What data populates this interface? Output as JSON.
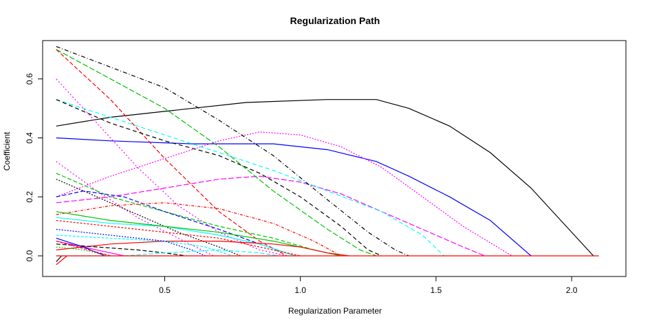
{
  "chart_data": {
    "type": "line",
    "title": "Regularization Path",
    "xlabel": "Regularization Parameter",
    "ylabel": "Coefficient",
    "xlim": [
      0.05,
      2.2
    ],
    "ylim": [
      -0.07,
      0.73
    ],
    "xticks": [
      "0.5",
      "1.0",
      "1.5",
      "2.0"
    ],
    "yticks": [
      "0.0",
      "0.2",
      "0.4",
      "0.6"
    ],
    "grid": false,
    "legend": "none",
    "series": [
      {
        "color": "#000000",
        "dash": "",
        "points": [
          [
            0.1,
            0.44
          ],
          [
            0.3,
            0.47
          ],
          [
            0.5,
            0.49
          ],
          [
            0.8,
            0.52
          ],
          [
            1.1,
            0.53
          ],
          [
            1.28,
            0.53
          ],
          [
            1.4,
            0.5
          ],
          [
            1.55,
            0.44
          ],
          [
            1.7,
            0.35
          ],
          [
            1.85,
            0.23
          ],
          [
            2.08,
            0.0
          ]
        ]
      },
      {
        "color": "#0000ff",
        "dash": "",
        "points": [
          [
            0.1,
            0.4
          ],
          [
            0.3,
            0.39
          ],
          [
            0.6,
            0.38
          ],
          [
            0.9,
            0.38
          ],
          [
            1.1,
            0.36
          ],
          [
            1.28,
            0.32
          ],
          [
            1.4,
            0.27
          ],
          [
            1.55,
            0.2
          ],
          [
            1.7,
            0.12
          ],
          [
            1.85,
            0.0
          ]
        ]
      },
      {
        "color": "#ff00ff",
        "dash": "2,2",
        "points": [
          [
            0.1,
            0.2
          ],
          [
            0.3,
            0.27
          ],
          [
            0.5,
            0.33
          ],
          [
            0.7,
            0.39
          ],
          [
            0.85,
            0.42
          ],
          [
            1.0,
            0.41
          ],
          [
            1.15,
            0.37
          ],
          [
            1.3,
            0.3
          ],
          [
            1.45,
            0.2
          ],
          [
            1.6,
            0.1
          ],
          [
            1.78,
            0.0
          ]
        ]
      },
      {
        "color": "#ff00ff",
        "dash": "8,3",
        "points": [
          [
            0.1,
            0.18
          ],
          [
            0.3,
            0.2
          ],
          [
            0.5,
            0.23
          ],
          [
            0.7,
            0.26
          ],
          [
            0.85,
            0.27
          ],
          [
            1.0,
            0.25
          ],
          [
            1.15,
            0.21
          ],
          [
            1.3,
            0.15
          ],
          [
            1.45,
            0.09
          ],
          [
            1.6,
            0.03
          ],
          [
            1.68,
            0.0
          ]
        ]
      },
      {
        "color": "#00ffff",
        "dash": "6,4",
        "points": [
          [
            0.1,
            0.53
          ],
          [
            0.3,
            0.47
          ],
          [
            0.5,
            0.41
          ],
          [
            0.7,
            0.35
          ],
          [
            0.9,
            0.29
          ],
          [
            1.1,
            0.22
          ],
          [
            1.3,
            0.15
          ],
          [
            1.45,
            0.07
          ],
          [
            1.53,
            0.0
          ]
        ]
      },
      {
        "color": "#000000",
        "dash": "6,3,1,3",
        "points": [
          [
            0.1,
            0.71
          ],
          [
            0.3,
            0.64
          ],
          [
            0.5,
            0.57
          ],
          [
            0.7,
            0.46
          ],
          [
            0.9,
            0.34
          ],
          [
            1.1,
            0.19
          ],
          [
            1.25,
            0.08
          ],
          [
            1.35,
            0.02
          ],
          [
            1.4,
            0.0
          ]
        ]
      },
      {
        "color": "#00c000",
        "dash": "8,3",
        "points": [
          [
            0.1,
            0.7
          ],
          [
            0.3,
            0.6
          ],
          [
            0.5,
            0.5
          ],
          [
            0.7,
            0.37
          ],
          [
            0.9,
            0.22
          ],
          [
            1.1,
            0.09
          ],
          [
            1.22,
            0.02
          ],
          [
            1.28,
            0.0
          ]
        ]
      },
      {
        "color": "#ff0000",
        "dash": "6,3",
        "points": [
          [
            0.1,
            0.7
          ],
          [
            0.3,
            0.53
          ],
          [
            0.5,
            0.33
          ],
          [
            0.7,
            0.15
          ],
          [
            0.85,
            0.05
          ],
          [
            0.95,
            0.0
          ]
        ]
      },
      {
        "color": "#000000",
        "dash": "6,4",
        "points": [
          [
            0.1,
            0.53
          ],
          [
            0.3,
            0.45
          ],
          [
            0.5,
            0.39
          ],
          [
            0.7,
            0.34
          ],
          [
            0.85,
            0.28
          ],
          [
            1.0,
            0.2
          ],
          [
            1.15,
            0.1
          ],
          [
            1.25,
            0.02
          ],
          [
            1.3,
            0.0
          ]
        ]
      },
      {
        "color": "#ff00ff",
        "dash": "2,3",
        "points": [
          [
            0.1,
            0.6
          ],
          [
            0.25,
            0.45
          ],
          [
            0.4,
            0.3
          ],
          [
            0.55,
            0.17
          ],
          [
            0.7,
            0.08
          ],
          [
            0.85,
            0.02
          ],
          [
            0.95,
            0.0
          ]
        ]
      },
      {
        "color": "#ff00ff",
        "dash": "2,3",
        "points": [
          [
            0.1,
            0.32
          ],
          [
            0.25,
            0.22
          ],
          [
            0.4,
            0.13
          ],
          [
            0.55,
            0.06
          ],
          [
            0.68,
            0.0
          ]
        ]
      },
      {
        "color": "#00c000",
        "dash": "6,3",
        "points": [
          [
            0.1,
            0.28
          ],
          [
            0.3,
            0.2
          ],
          [
            0.5,
            0.15
          ],
          [
            0.7,
            0.1
          ],
          [
            0.9,
            0.06
          ],
          [
            1.05,
            0.02
          ],
          [
            1.15,
            0.0
          ]
        ]
      },
      {
        "color": "#0000ff",
        "dash": "6,3",
        "points": [
          [
            0.1,
            0.2
          ],
          [
            0.2,
            0.22
          ],
          [
            0.35,
            0.2
          ],
          [
            0.5,
            0.15
          ],
          [
            0.7,
            0.09
          ],
          [
            0.85,
            0.04
          ],
          [
            0.98,
            0.0
          ]
        ]
      },
      {
        "color": "#ff0000",
        "dash": "4,2,1,2",
        "points": [
          [
            0.1,
            0.14
          ],
          [
            0.3,
            0.17
          ],
          [
            0.5,
            0.18
          ],
          [
            0.7,
            0.16
          ],
          [
            0.9,
            0.11
          ],
          [
            1.05,
            0.05
          ],
          [
            1.15,
            0.0
          ]
        ]
      },
      {
        "color": "#000000",
        "dash": "2,2",
        "points": [
          [
            0.1,
            0.26
          ],
          [
            0.25,
            0.2
          ],
          [
            0.4,
            0.14
          ],
          [
            0.55,
            0.08
          ],
          [
            0.7,
            0.03
          ],
          [
            0.78,
            0.0
          ]
        ]
      },
      {
        "color": "#00ffff",
        "dash": "",
        "points": [
          [
            0.1,
            0.13
          ],
          [
            0.3,
            0.11
          ],
          [
            0.5,
            0.1
          ],
          [
            0.7,
            0.07
          ],
          [
            0.85,
            0.04
          ],
          [
            0.98,
            0.0
          ]
        ]
      },
      {
        "color": "#00c000",
        "dash": "",
        "points": [
          [
            0.1,
            0.15
          ],
          [
            0.3,
            0.12
          ],
          [
            0.5,
            0.1
          ],
          [
            0.7,
            0.08
          ],
          [
            0.9,
            0.05
          ],
          [
            1.05,
            0.02
          ],
          [
            1.15,
            0.0
          ]
        ]
      },
      {
        "color": "#ff0000",
        "dash": "",
        "points": [
          [
            0.1,
            0.02
          ],
          [
            0.3,
            0.04
          ],
          [
            0.5,
            0.05
          ],
          [
            0.7,
            0.05
          ],
          [
            0.9,
            0.04
          ],
          [
            1.0,
            0.03
          ],
          [
            1.1,
            0.01
          ],
          [
            1.18,
            0.0
          ]
        ]
      },
      {
        "color": "#ff0000",
        "dash": "3,2",
        "points": [
          [
            0.1,
            0.12
          ],
          [
            0.3,
            0.1
          ],
          [
            0.5,
            0.08
          ],
          [
            0.7,
            0.06
          ],
          [
            0.85,
            0.03
          ],
          [
            1.0,
            0.0
          ]
        ]
      },
      {
        "color": "#00ffff",
        "dash": "4,2",
        "points": [
          [
            0.1,
            0.07
          ],
          [
            0.3,
            0.06
          ],
          [
            0.5,
            0.05
          ],
          [
            0.65,
            0.03
          ],
          [
            0.75,
            0.0
          ]
        ]
      },
      {
        "color": "#0000ff",
        "dash": "2,2",
        "points": [
          [
            0.1,
            0.09
          ],
          [
            0.3,
            0.07
          ],
          [
            0.5,
            0.05
          ],
          [
            0.6,
            0.02
          ],
          [
            0.65,
            0.0
          ]
        ]
      },
      {
        "color": "#000000",
        "dash": "6,3",
        "points": [
          [
            0.1,
            0.04
          ],
          [
            0.25,
            0.03
          ],
          [
            0.4,
            0.02
          ],
          [
            0.5,
            0.01
          ],
          [
            0.58,
            0.0
          ]
        ]
      },
      {
        "color": "#ff00ff",
        "dash": "",
        "points": [
          [
            0.1,
            0.05
          ],
          [
            0.2,
            0.03
          ],
          [
            0.3,
            0.01
          ],
          [
            0.35,
            0.0
          ]
        ]
      },
      {
        "color": "#00ffff",
        "dash": "6,3",
        "points": [
          [
            0.1,
            0.0
          ],
          [
            0.35,
            0.0
          ],
          [
            0.5,
            0.01
          ],
          [
            0.7,
            0.02
          ],
          [
            0.85,
            0.01
          ],
          [
            0.92,
            0.0
          ]
        ]
      },
      {
        "color": "#00c000",
        "dash": "2,2",
        "points": [
          [
            0.1,
            0.03
          ],
          [
            0.2,
            0.02
          ],
          [
            0.3,
            0.0
          ]
        ]
      },
      {
        "color": "#ff0000",
        "dash": "",
        "points": [
          [
            0.1,
            -0.03
          ],
          [
            0.14,
            0.0
          ]
        ]
      },
      {
        "color": "#0000ff",
        "dash": "",
        "points": [
          [
            0.1,
            0.06
          ],
          [
            0.2,
            0.03
          ],
          [
            0.28,
            0.0
          ]
        ]
      },
      {
        "color": "#ff0000",
        "dash": "4,2",
        "points": [
          [
            0.1,
            0.05
          ],
          [
            0.22,
            0.02
          ],
          [
            0.3,
            0.0
          ]
        ]
      },
      {
        "color": "#000000",
        "dash": "",
        "points": [
          [
            0.1,
            -0.02
          ],
          [
            0.12,
            0.0
          ]
        ]
      },
      {
        "color": "#ff0000",
        "dash": "",
        "points": [
          [
            0.1,
            0.0
          ],
          [
            2.1,
            0.0
          ]
        ]
      }
    ]
  }
}
